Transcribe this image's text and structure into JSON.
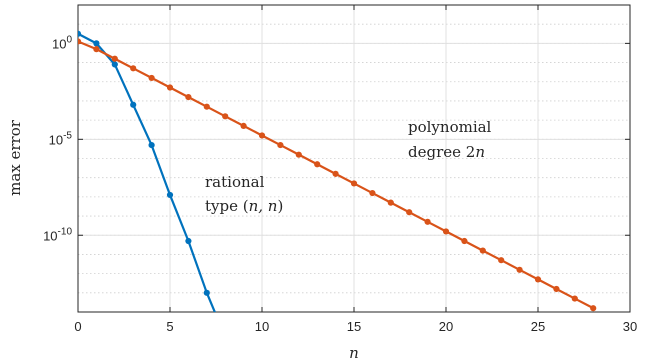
{
  "chart_data": {
    "type": "line",
    "xlabel": "n",
    "ylabel": "max error",
    "xlim": [
      0,
      30
    ],
    "ylim_log10": [
      -14,
      2
    ],
    "y_scale": "log",
    "grid": true,
    "x_ticks": [
      "0",
      "5",
      "10",
      "15",
      "20",
      "25",
      "30"
    ],
    "y_ticks": [
      {
        "base": "10",
        "exp": "0",
        "log10": 0
      },
      {
        "base": "10",
        "exp": "-5",
        "log10": -5
      },
      {
        "base": "10",
        "exp": "-10",
        "log10": -10
      }
    ],
    "series": [
      {
        "color": "#0072BD",
        "x": [
          0,
          1,
          2,
          3,
          4,
          5,
          6,
          7,
          8
        ],
        "log10_y": [
          0.5,
          0.0,
          -1.1,
          -3.2,
          -5.3,
          -7.9,
          -10.3,
          -13.0,
          -15.3
        ]
      },
      {
        "color": "#D95319",
        "x": [
          0,
          1,
          2,
          3,
          4,
          5,
          6,
          7,
          8,
          9,
          10,
          11,
          12,
          13,
          14,
          15,
          16,
          17,
          18,
          19,
          20,
          21,
          22,
          23,
          24,
          25,
          26,
          27,
          28
        ],
        "log10_y": [
          0.1,
          -0.3,
          -0.8,
          -1.3,
          -1.8,
          -2.3,
          -2.8,
          -3.3,
          -3.8,
          -4.3,
          -4.8,
          -5.3,
          -5.8,
          -6.3,
          -6.8,
          -7.3,
          -7.8,
          -8.3,
          -8.8,
          -9.3,
          -9.8,
          -10.3,
          -10.8,
          -11.3,
          -11.8,
          -12.3,
          -12.8,
          -13.3,
          -13.8
        ]
      }
    ],
    "annotations": {
      "polynomial_line1": "polynomial",
      "polynomial_line2_prefix": "degree 2",
      "polynomial_line2_var": "n",
      "rational_line1": "rational",
      "rational_line2_prefix": "type (",
      "rational_line2_var": "n, n",
      "rational_line2_suffix": ")"
    }
  }
}
